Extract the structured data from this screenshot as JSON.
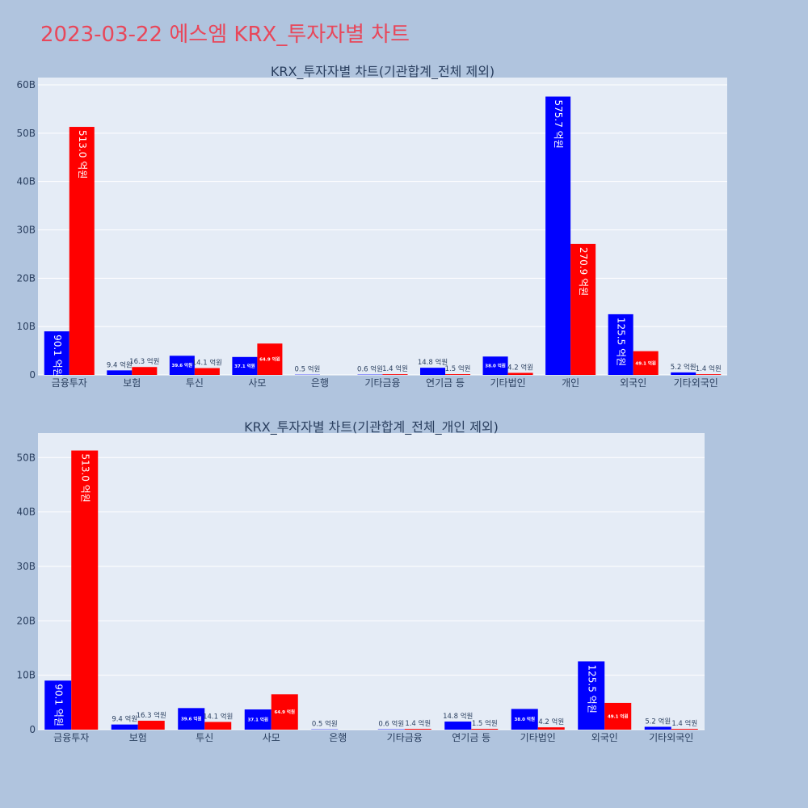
{
  "page_title": "2023-03-22 에스엠 KRX_투자자별 차트",
  "colors": {
    "buy": "#0000ff",
    "sell": "#ff0000",
    "plot_bg": "#e5ecf6",
    "page_bg": "#b0c4de",
    "title": "#e8475a"
  },
  "chart_data": [
    {
      "type": "bar",
      "title": "KRX_투자자별 차트(기관합계_전체 제외)",
      "categories": [
        "금융투자",
        "보험",
        "투신",
        "사모",
        "은행",
        "기타금융",
        "연기금 등",
        "기타법인",
        "개인",
        "외국인",
        "기타외국인"
      ],
      "series": [
        {
          "values": [
            9.01,
            0.94,
            3.96,
            3.71,
            0.05,
            0.06,
            1.48,
            3.8,
            57.57,
            12.55,
            0.52
          ],
          "labels": [
            "90.1 억원",
            "9.4 억원",
            "39.6 억원",
            "37.1 억원",
            "0.5 억원",
            "0.6 억원",
            "14.8 억원",
            "38.0 억원",
            "575.7 억원",
            "125.5 억원",
            "5.2 억원"
          ]
        },
        {
          "values": [
            51.3,
            1.63,
            1.41,
            6.49,
            0,
            0.14,
            0.15,
            0.42,
            27.09,
            4.91,
            0.14
          ],
          "labels": [
            "513.0 억원",
            "16.3 억원",
            "14.1 억원",
            "64.9 억원",
            "",
            "1.4 억원",
            "1.5 억원",
            "4.2 억원",
            "270.9 억원",
            "49.1 억원",
            "1.4 억원"
          ]
        }
      ],
      "yticks": [
        0,
        10,
        20,
        30,
        40,
        50,
        60
      ],
      "ytick_labels": [
        "0",
        "10B",
        "20B",
        "30B",
        "40B",
        "50B",
        "60B"
      ],
      "ylim": [
        0,
        61.5
      ],
      "grid": true,
      "legend": "none"
    },
    {
      "type": "bar",
      "title": "KRX_투자자별 차트(기관합계_전체_개인 제외)",
      "categories": [
        "금융투자",
        "보험",
        "투신",
        "사모",
        "은행",
        "기타금융",
        "연기금 등",
        "기타법인",
        "외국인",
        "기타외국인"
      ],
      "series": [
        {
          "values": [
            9.01,
            0.94,
            3.96,
            3.71,
            0.05,
            0.06,
            1.48,
            3.8,
            12.55,
            0.52
          ],
          "labels": [
            "90.1 억원",
            "9.4 억원",
            "39.6 억원",
            "37.1 억원",
            "0.5 억원",
            "0.6 억원",
            "14.8 억원",
            "38.0 억원",
            "125.5 억원",
            "5.2 억원"
          ]
        },
        {
          "values": [
            51.3,
            1.63,
            1.41,
            6.49,
            0,
            0.14,
            0.15,
            0.42,
            4.91,
            0.14
          ],
          "labels": [
            "513.0 억원",
            "16.3 억원",
            "14.1 억원",
            "64.9 억원",
            "",
            "1.4 억원",
            "1.5 억원",
            "4.2 억원",
            "49.1 억원",
            "1.4 억원"
          ]
        }
      ],
      "yticks": [
        0,
        10,
        20,
        30,
        40,
        50
      ],
      "ytick_labels": [
        "0",
        "10B",
        "20B",
        "30B",
        "40B",
        "50B"
      ],
      "ylim": [
        0,
        54.5
      ],
      "grid": true,
      "legend": "none"
    }
  ]
}
